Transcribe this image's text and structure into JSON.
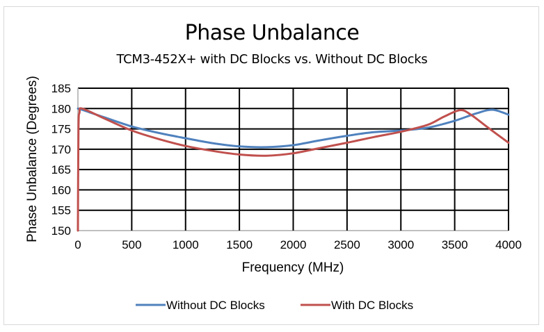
{
  "chart_data": {
    "type": "line",
    "title": "Phase Unbalance",
    "subtitle": "TCM3-452X+ with DC Blocks vs. Without DC Blocks",
    "xlabel": "Frequency (MHz)",
    "ylabel": "Phase Unbalance (Degrees)",
    "xlim": [
      0,
      4000
    ],
    "ylim": [
      150,
      185
    ],
    "xticks": [
      "0",
      "500",
      "1000",
      "1500",
      "2000",
      "2500",
      "3000",
      "3500",
      "4000"
    ],
    "yticks": [
      "150",
      "155",
      "160",
      "165",
      "170",
      "175",
      "180",
      "185"
    ],
    "grid": true,
    "legend_position": "bottom",
    "series": [
      {
        "name": "Without DC Blocks",
        "color": "#4f81bd",
        "x": [
          0,
          50,
          250,
          500,
          750,
          1000,
          1250,
          1500,
          1750,
          2000,
          2250,
          2500,
          2750,
          3000,
          3250,
          3500,
          3700,
          3850,
          4000
        ],
        "y": [
          180,
          179.6,
          177.8,
          175.6,
          174.0,
          172.7,
          171.5,
          170.7,
          170.5,
          171.0,
          172.2,
          173.3,
          174.2,
          174.6,
          175.3,
          177.0,
          178.8,
          179.7,
          178.5
        ]
      },
      {
        "name": "With DC Blocks",
        "color": "#c0504d",
        "x": [
          0,
          5,
          15,
          40,
          250,
          500,
          750,
          1000,
          1250,
          1500,
          1750,
          2000,
          2250,
          2500,
          2750,
          3000,
          3250,
          3400,
          3550,
          3650,
          3800,
          4000
        ],
        "y": [
          150,
          175,
          179,
          180,
          177.5,
          174.6,
          172.5,
          170.8,
          169.6,
          168.7,
          168.4,
          169.0,
          170.3,
          171.6,
          173.0,
          174.3,
          176.0,
          178.0,
          179.6,
          178.5,
          175.5,
          171.6
        ]
      }
    ]
  }
}
